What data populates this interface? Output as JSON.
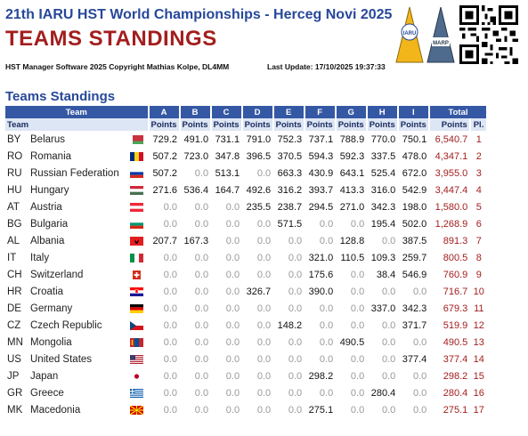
{
  "header": {
    "title": "21th IARU HST World Championships - Herceg Novi 2025",
    "subtitle": "TEAMS STANDINGS",
    "copyright": "HST Manager Software 2025 Copyright Mathias Kolpe, DL4MM",
    "last_update": "Last Update: 17/10/2025 19:37:33",
    "logo_iaru_text": "IARU",
    "logo_marp_text": "MARP"
  },
  "section_title": "Teams Standings",
  "table": {
    "group_headers": {
      "team": "Team",
      "total": "Total",
      "events": [
        "A",
        "B",
        "C",
        "D",
        "E",
        "F",
        "G",
        "H",
        "I"
      ]
    },
    "sub_headers": {
      "team": "Team",
      "points": "Points",
      "place": "Pl."
    },
    "rows": [
      {
        "code": "BY",
        "name": "Belarus",
        "flag": "flag-belarus",
        "points": [
          "729.2",
          "491.0",
          "731.1",
          "791.0",
          "752.3",
          "737.1",
          "788.9",
          "770.0",
          "750.1"
        ],
        "total": "6,540.7",
        "place": "1"
      },
      {
        "code": "RO",
        "name": "Romania",
        "flag": "flag-romania",
        "points": [
          "507.2",
          "723.0",
          "347.8",
          "396.5",
          "370.5",
          "594.3",
          "592.3",
          "337.5",
          "478.0"
        ],
        "total": "4,347.1",
        "place": "2"
      },
      {
        "code": "RU",
        "name": "Russian Federation",
        "flag": "flag-russia",
        "points": [
          "507.2",
          "0.0",
          "513.1",
          "0.0",
          "663.3",
          "430.9",
          "643.1",
          "525.4",
          "672.0"
        ],
        "total": "3,955.0",
        "place": "3"
      },
      {
        "code": "HU",
        "name": "Hungary",
        "flag": "flag-hungary",
        "points": [
          "271.6",
          "536.4",
          "164.7",
          "492.6",
          "316.2",
          "393.7",
          "413.3",
          "316.0",
          "542.9"
        ],
        "total": "3,447.4",
        "place": "4"
      },
      {
        "code": "AT",
        "name": "Austria",
        "flag": "flag-austria",
        "points": [
          "0.0",
          "0.0",
          "0.0",
          "235.5",
          "238.7",
          "294.5",
          "271.0",
          "342.3",
          "198.0"
        ],
        "total": "1,580.0",
        "place": "5"
      },
      {
        "code": "BG",
        "name": "Bulgaria",
        "flag": "flag-bulgaria",
        "points": [
          "0.0",
          "0.0",
          "0.0",
          "0.0",
          "571.5",
          "0.0",
          "0.0",
          "195.4",
          "502.0"
        ],
        "total": "1,268.9",
        "place": "6"
      },
      {
        "code": "AL",
        "name": "Albania",
        "flag": "flag-albania",
        "points": [
          "207.7",
          "167.3",
          "0.0",
          "0.0",
          "0.0",
          "0.0",
          "128.8",
          "0.0",
          "387.5"
        ],
        "total": "891.3",
        "place": "7"
      },
      {
        "code": "IT",
        "name": "Italy",
        "flag": "flag-italy",
        "points": [
          "0.0",
          "0.0",
          "0.0",
          "0.0",
          "0.0",
          "321.0",
          "110.5",
          "109.3",
          "259.7"
        ],
        "total": "800.5",
        "place": "8"
      },
      {
        "code": "CH",
        "name": "Switzerland",
        "flag": "flag-switzerland",
        "points": [
          "0.0",
          "0.0",
          "0.0",
          "0.0",
          "0.0",
          "175.6",
          "0.0",
          "38.4",
          "546.9"
        ],
        "total": "760.9",
        "place": "9"
      },
      {
        "code": "HR",
        "name": "Croatia",
        "flag": "flag-croatia",
        "points": [
          "0.0",
          "0.0",
          "0.0",
          "326.7",
          "0.0",
          "390.0",
          "0.0",
          "0.0",
          "0.0"
        ],
        "total": "716.7",
        "place": "10"
      },
      {
        "code": "DE",
        "name": "Germany",
        "flag": "flag-germany",
        "points": [
          "0.0",
          "0.0",
          "0.0",
          "0.0",
          "0.0",
          "0.0",
          "0.0",
          "337.0",
          "342.3"
        ],
        "total": "679.3",
        "place": "11"
      },
      {
        "code": "CZ",
        "name": "Czech Republic",
        "flag": "flag-czech",
        "points": [
          "0.0",
          "0.0",
          "0.0",
          "0.0",
          "148.2",
          "0.0",
          "0.0",
          "0.0",
          "371.7"
        ],
        "total": "519.9",
        "place": "12"
      },
      {
        "code": "MN",
        "name": "Mongolia",
        "flag": "flag-mongolia",
        "points": [
          "0.0",
          "0.0",
          "0.0",
          "0.0",
          "0.0",
          "0.0",
          "490.5",
          "0.0",
          "0.0"
        ],
        "total": "490.5",
        "place": "13"
      },
      {
        "code": "US",
        "name": "United States",
        "flag": "flag-usa",
        "points": [
          "0.0",
          "0.0",
          "0.0",
          "0.0",
          "0.0",
          "0.0",
          "0.0",
          "0.0",
          "377.4"
        ],
        "total": "377.4",
        "place": "14"
      },
      {
        "code": "JP",
        "name": "Japan",
        "flag": "flag-japan",
        "points": [
          "0.0",
          "0.0",
          "0.0",
          "0.0",
          "0.0",
          "298.2",
          "0.0",
          "0.0",
          "0.0"
        ],
        "total": "298.2",
        "place": "15"
      },
      {
        "code": "GR",
        "name": "Greece",
        "flag": "flag-greece",
        "points": [
          "0.0",
          "0.0",
          "0.0",
          "0.0",
          "0.0",
          "0.0",
          "0.0",
          "280.4",
          "0.0"
        ],
        "total": "280.4",
        "place": "16"
      },
      {
        "code": "MK",
        "name": "Macedonia",
        "flag": "flag-macedonia",
        "points": [
          "0.0",
          "0.0",
          "0.0",
          "0.0",
          "0.0",
          "275.1",
          "0.0",
          "0.0",
          "0.0"
        ],
        "total": "275.1",
        "place": "17"
      }
    ]
  },
  "colors": {
    "title_blue": "#27489a",
    "title_red": "#a31e1e",
    "header_blue": "#3558a4",
    "subheader_bg": "#dde6f4",
    "zero_gray": "#999999"
  }
}
